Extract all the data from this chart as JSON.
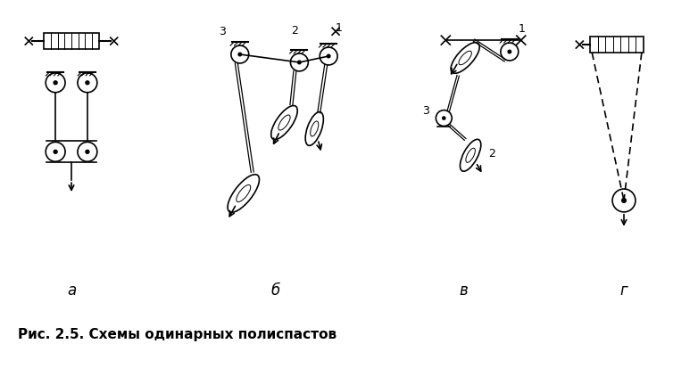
{
  "caption": "Рис. 2.5. Схемы одинарных полиспастов",
  "bg_color": "#ffffff",
  "line_color": "#000000",
  "labels": [
    "а",
    "б",
    "в",
    "г"
  ],
  "label_fontsize": 12,
  "caption_fontsize": 11
}
